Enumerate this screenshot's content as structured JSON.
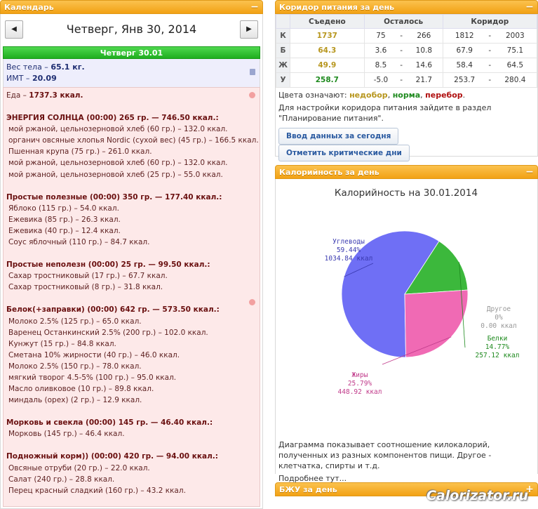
{
  "calendar": {
    "header": "Календарь",
    "toggle": "−",
    "prev": "◀",
    "next": "▶",
    "date_title": "Четверг, Янв 30, 2014",
    "day_bar": "Четверг 30.01",
    "weight_label": "Вес тела – ",
    "weight_value": "65.1 кг.",
    "bmi_label": "ИМТ – ",
    "bmi_value": "20.09",
    "food_total_label": "Еда – ",
    "food_total_value": "1737.3 ккал.",
    "meals": [
      {
        "title": "ЭНЕРГИЯ СОЛНЦА (00:00) 265 гр. — 746.50 ккал.:",
        "items": [
          "мой ржаной, цельнозерновой хлеб (60 гр.) – 132.0 ккал.",
          "органич овсяные хлопья Nordic (сухой вес) (45 гр.) – 166.5 ккал.",
          "Пшенная крупа (75 гр.) – 261.0 ккал.",
          "мой ржаной, цельнозерновой хлеб (60 гр.) – 132.0 ккал.",
          "мой ржаной, цельнозерновой хлеб (25 гр.) – 55.0 ккал."
        ]
      },
      {
        "title": "Простые полезные (00:00) 350 гр. — 177.40 ккал.:",
        "items": [
          "Яблоко (115 гр.) – 54.0 ккал.",
          "Ежевика (85 гр.) – 26.3 ккал.",
          "Ежевика (40 гр.) – 12.4 ккал.",
          "Соус яблочный (110 гр.) – 84.7 ккал."
        ]
      },
      {
        "title": "Простые неполезн (00:00) 25 гр. — 99.50 ккал.:",
        "items": [
          "Сахар тростниковый (17 гр.) – 67.7 ккал.",
          "Сахар тростниковый (8 гр.) – 31.8 ккал."
        ]
      },
      {
        "title": "Белок(+заправки) (00:00) 642 гр. — 573.50 ккал.:",
        "items": [
          "Молоко 2.5% (125 гр.) – 65.0 ккал.",
          "Варенец Останкинский 2.5% (200 гр.) – 102.0 ккал.",
          "Кунжут (15 гр.) – 84.8 ккал.",
          "Сметана 10% жирности (40 гр.) – 46.0 ккал.",
          "Молоко 2.5% (150 гр.) – 78.0 ккал.",
          "мягкий творог 4.5-5% (100 гр.) – 95.0 ккал.",
          "Масло оливковое (10 гр.) – 89.8 ккал.",
          "миндаль (орех) (2 гр.) – 12.9 ккал."
        ]
      },
      {
        "title": "Морковь и свекла (00:00) 145 гр. — 46.40 ккал.:",
        "items": [
          "Морковь (145 гр.) – 46.4 ккал."
        ]
      },
      {
        "title": "Подножный корм)) (00:00) 420 гр. — 94.00 ккал.:",
        "items": [
          "Овсяные отруби (20 гр.) – 22.0 ккал.",
          "Салат (240 гр.) – 28.8 ккал.",
          "Перец красный сладкий (160 гр.) – 43.2 ккал."
        ]
      }
    ]
  },
  "corridor": {
    "header": "Коридор питания за день",
    "toggle": "−",
    "columns": [
      "Съедено",
      "Осталось",
      "Коридор"
    ],
    "rows": [
      {
        "label": "К",
        "eaten": "1737",
        "left_min": "75",
        "left_max": "266",
        "cor_min": "1812",
        "cor_max": "2003",
        "eaten_color": "#b7961d"
      },
      {
        "label": "Б",
        "eaten": "64.3",
        "left_min": "3.6",
        "left_max": "10.8",
        "cor_min": "67.9",
        "cor_max": "75.1",
        "eaten_color": "#b7961d"
      },
      {
        "label": "Ж",
        "eaten": "49.9",
        "left_min": "8.5",
        "left_max": "14.6",
        "cor_min": "58.4",
        "cor_max": "64.5",
        "eaten_color": "#b7961d"
      },
      {
        "label": "У",
        "eaten": "258.7",
        "left_min": "-5.0",
        "left_max": "21.7",
        "cor_min": "253.7",
        "cor_max": "280.4",
        "eaten_color": "#1e8a1e"
      }
    ],
    "dash": "-",
    "colors_prefix": "Цвета означают: ",
    "color_under": "недобор",
    "sep1": ", ",
    "color_norm": "норма",
    "sep2": ", ",
    "color_over": "перебор",
    "colors_suffix": ".",
    "settings_text": "Для настройки коридора питания зайдите в раздел \"Планирование питания\".",
    "btn_enter": "Ввод данных за сегодня",
    "btn_critical": "Отметить критические дни"
  },
  "calories": {
    "header": "Калорийность за день",
    "toggle": "−",
    "description": "Диаграмма показывает соотношение килокалорий, полученных из разных компонентов пищи. Другое - клетчатка, спирты и т.д.",
    "more": "Подробнее тут..."
  },
  "chart_data": {
    "type": "pie",
    "title": "Калорийность на 30.01.2014",
    "slices": [
      {
        "name": "Углеводы",
        "percent": 59.44,
        "value": 1034.84,
        "percent_label": "59.44%",
        "value_label": "1034.84 ккал",
        "color": "#6f6ff5",
        "label_color": "#3a3ab0"
      },
      {
        "name": "Белки",
        "percent": 14.77,
        "value": 257.12,
        "percent_label": "14.77%",
        "value_label": "257.12 ккал",
        "color": "#3cb83c",
        "label_color": "#1e8a1e"
      },
      {
        "name": "Жиры",
        "percent": 25.79,
        "value": 448.92,
        "percent_label": "25.79%",
        "value_label": "448.92 ккал",
        "color": "#f06ab4",
        "label_color": "#c03a8a"
      },
      {
        "name": "Другое",
        "percent": 0,
        "value": 0.0,
        "percent_label": "0%",
        "value_label": "0.00 ккал",
        "color": "#cccccc",
        "label_color": "#999999"
      }
    ]
  },
  "bju": {
    "header": "БЖУ за день",
    "toggle": "+"
  },
  "watermark": "Calorizator.ru"
}
